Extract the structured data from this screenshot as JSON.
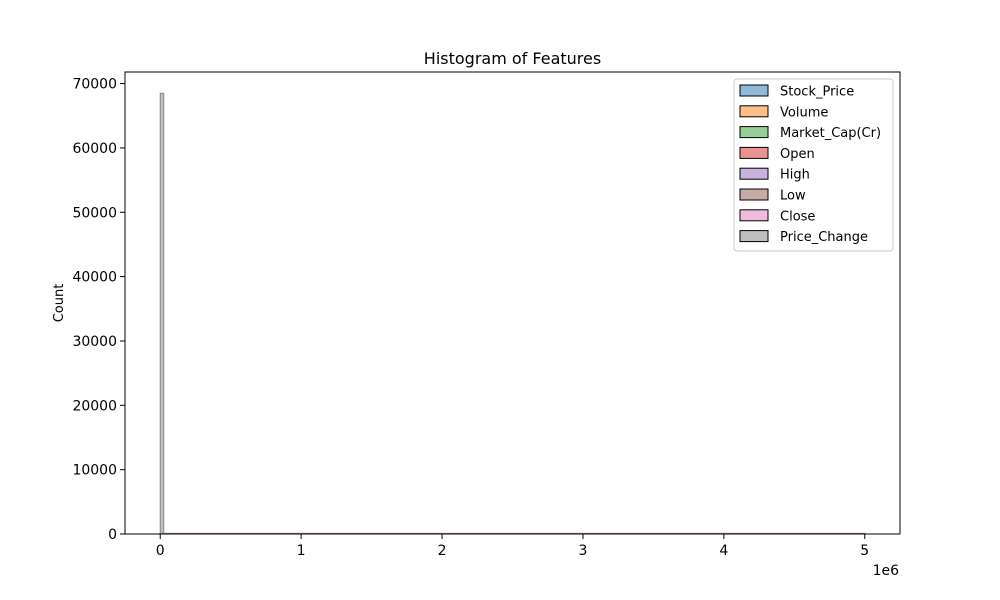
{
  "chart_data": {
    "type": "histogram",
    "title": "Histogram of Features",
    "xlabel": "",
    "ylabel": "Count",
    "x_scale_label": "1e6",
    "xlim": [
      -250000,
      5250000
    ],
    "ylim": [
      0,
      71800
    ],
    "x_ticks": [
      0,
      1000000,
      2000000,
      3000000,
      4000000,
      5000000
    ],
    "x_tick_labels": [
      "0",
      "1",
      "2",
      "3",
      "4",
      "5"
    ],
    "y_ticks": [
      0,
      10000,
      20000,
      30000,
      40000,
      50000,
      60000,
      70000
    ],
    "y_tick_labels": [
      "0",
      "10000",
      "20000",
      "30000",
      "40000",
      "50000",
      "60000",
      "70000"
    ],
    "grid": false,
    "legend_position": "top-right",
    "series": [
      {
        "name": "Stock_Price",
        "color": "#1f77b4",
        "bins": [
          [
            0,
            5000000,
            100
          ]
        ]
      },
      {
        "name": "Volume",
        "color": "#ff7f0e",
        "bins": [
          [
            0,
            5000000,
            50
          ]
        ]
      },
      {
        "name": "Market_Cap(Cr)",
        "color": "#2ca02c",
        "bins": [
          [
            0,
            5000000,
            50
          ]
        ]
      },
      {
        "name": "Open",
        "color": "#d62728",
        "bins": [
          [
            0,
            5000000,
            50
          ]
        ]
      },
      {
        "name": "High",
        "color": "#9467bd",
        "bins": [
          [
            0,
            5000000,
            50
          ]
        ]
      },
      {
        "name": "Low",
        "color": "#8c564b",
        "bins": [
          [
            0,
            5000000,
            50
          ]
        ]
      },
      {
        "name": "Close",
        "color": "#e377c2",
        "bins": [
          [
            0,
            5000000,
            50
          ]
        ]
      },
      {
        "name": "Price_Change",
        "color": "#7f7f7f",
        "bins": [
          [
            0,
            25000,
            68500
          ]
        ]
      }
    ]
  }
}
